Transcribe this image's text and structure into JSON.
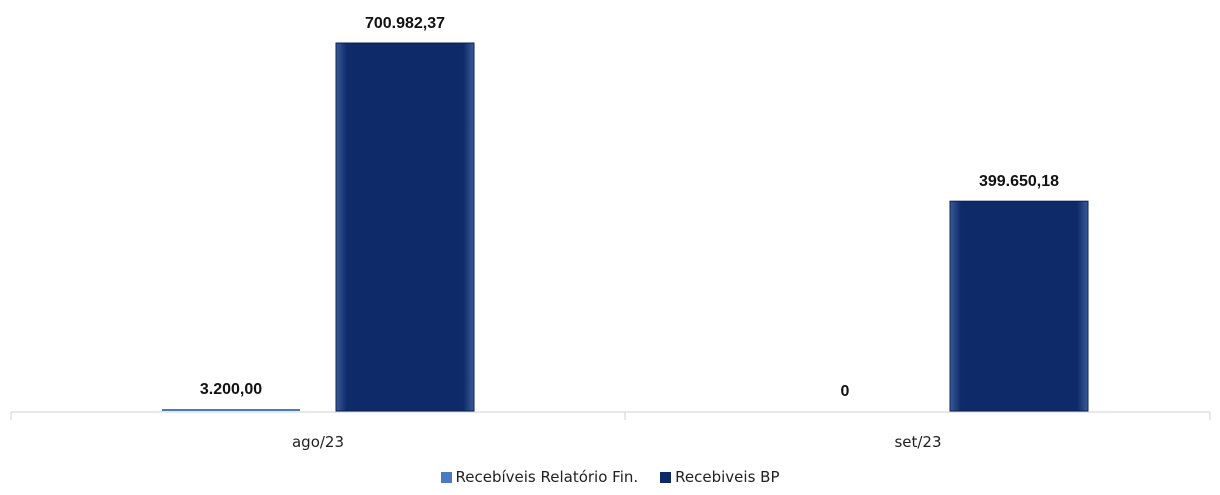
{
  "chart_data": {
    "type": "bar",
    "categories": [
      "ago/23",
      "set/23"
    ],
    "series": [
      {
        "name": "Recebíveis Relatório Fin.",
        "values": [
          3200.0,
          0
        ],
        "labels": [
          "3.200,00",
          "0"
        ],
        "color": "#4a7bc0"
      },
      {
        "name": "Recebiveis BP",
        "values": [
          700982.37,
          399650.18
        ],
        "labels": [
          "700.982,37",
          "399.650,18"
        ],
        "color": "#0d2a66"
      }
    ],
    "ylim": [
      0,
      700982.37
    ],
    "grid": false,
    "legend_position": "bottom"
  }
}
